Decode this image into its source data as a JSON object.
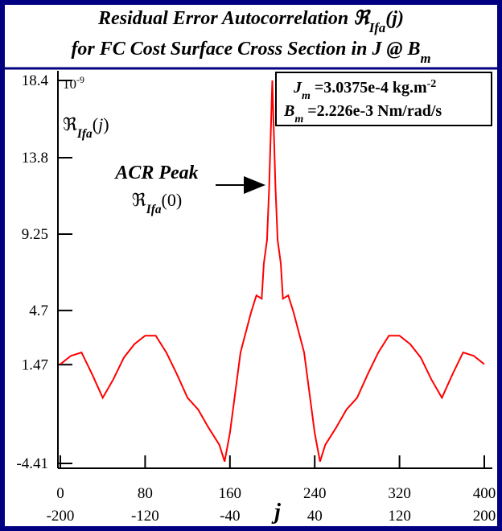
{
  "chart_data": {
    "type": "line",
    "title": [
      [
        "Residual Error Autocorrelation ℜ",
        "Ifa",
        "(j)"
      ],
      [
        "for FC Cost Surface Cross Section in J @ B",
        "m"
      ]
    ],
    "scale_label": [
      "10",
      "-9"
    ],
    "y_label": [
      "ℜ",
      "Ifa",
      "(",
      "j",
      ")"
    ],
    "x_label": "j",
    "annotation": {
      "text": "ACR Peak",
      "symbol": [
        "ℜ",
        "Ifa",
        "(0)"
      ]
    },
    "info": [
      [
        "J",
        "m",
        " =3.0375e-4 kg.m",
        "-2"
      ],
      [
        "B",
        "m",
        " =2.226e-3 Nm/rad/s"
      ]
    ],
    "color": "#ff0000",
    "x": [
      0,
      10,
      20,
      30,
      40,
      50,
      60,
      70,
      80,
      90,
      100,
      110,
      120,
      130,
      140,
      150,
      155,
      160,
      170,
      175,
      180,
      185,
      190,
      192,
      195,
      197,
      200,
      203,
      205,
      208,
      210,
      215,
      220,
      225,
      230,
      240,
      245,
      250,
      260,
      270,
      280,
      290,
      300,
      310,
      320,
      330,
      340,
      350,
      360,
      370,
      380,
      390,
      400
    ],
    "values": [
      1.5,
      2.0,
      2.2,
      0.9,
      -0.5,
      0.6,
      1.9,
      2.7,
      3.2,
      3.2,
      2.2,
      0.9,
      -0.5,
      -1.2,
      -2.3,
      -3.3,
      -4.3,
      -2.6,
      2.2,
      3.4,
      4.6,
      5.6,
      5.4,
      7.5,
      8.9,
      12.0,
      18.4,
      12.0,
      8.9,
      7.5,
      5.4,
      5.6,
      4.6,
      3.4,
      2.2,
      -2.6,
      -4.3,
      -3.3,
      -2.3,
      -1.2,
      -0.5,
      0.9,
      2.2,
      3.2,
      3.2,
      2.7,
      1.9,
      0.6,
      -0.5,
      0.9,
      2.2,
      2.0,
      1.5
    ],
    "xlim": [
      0,
      400
    ],
    "xticks": [
      0,
      80,
      160,
      240,
      320,
      400
    ],
    "x2lim": [
      -200,
      200
    ],
    "x2ticks": [
      -200,
      -120,
      -40,
      40,
      120,
      200
    ],
    "ylim": [
      -4.41,
      18.4
    ],
    "yticks": [
      18.4,
      13.8,
      9.25,
      4.7,
      1.47,
      -4.41
    ]
  }
}
